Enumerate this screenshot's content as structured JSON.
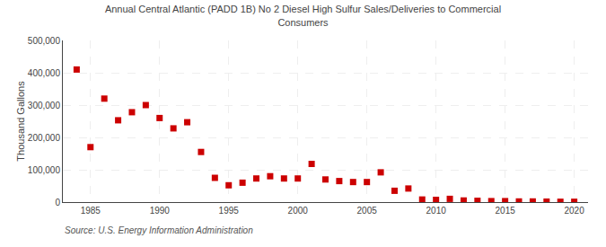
{
  "chart_data": {
    "type": "scatter",
    "title": "Annual Central Atlantic (PADD 1B) No 2 Diesel High Sulfur Sales/Deliveries to Commercial\nConsumers",
    "ylabel": "Thousand Gallons",
    "annotations": [
      "Source: U.S. Energy Information Administration"
    ],
    "x": [
      1984,
      1985,
      1986,
      1987,
      1988,
      1989,
      1990,
      1991,
      1992,
      1993,
      1994,
      1995,
      1996,
      1997,
      1998,
      1999,
      2000,
      2001,
      2002,
      2003,
      2004,
      2005,
      2006,
      2007,
      2008,
      2009,
      2010,
      2011,
      2012,
      2013,
      2014,
      2015,
      2016,
      2017,
      2018,
      2019,
      2020
    ],
    "values": [
      410000,
      170000,
      320000,
      253000,
      278000,
      300000,
      260000,
      228000,
      247000,
      155000,
      75000,
      52000,
      60000,
      73000,
      80000,
      73000,
      73000,
      118000,
      70000,
      65000,
      62000,
      62000,
      92000,
      35000,
      42000,
      8000,
      7000,
      10000,
      5000,
      4000,
      3000,
      3000,
      2000,
      2000,
      1500,
      1000,
      1000
    ],
    "color": "#cc0000",
    "marker": "square",
    "xlim": [
      1983,
      2021
    ],
    "xticks": [
      1985,
      1990,
      1995,
      2000,
      2005,
      2010,
      2015,
      2020
    ],
    "ylim": [
      0,
      500000
    ],
    "yticks": [
      0,
      {
        "value": 100000,
        "label": "100,000"
      },
      {
        "value": 200000,
        "label": "200,000"
      },
      {
        "value": 300000,
        "label": "300,000"
      },
      {
        "value": 400000,
        "label": "400,000"
      },
      {
        "value": 500000,
        "label": "500,000"
      }
    ],
    "grid": true
  }
}
